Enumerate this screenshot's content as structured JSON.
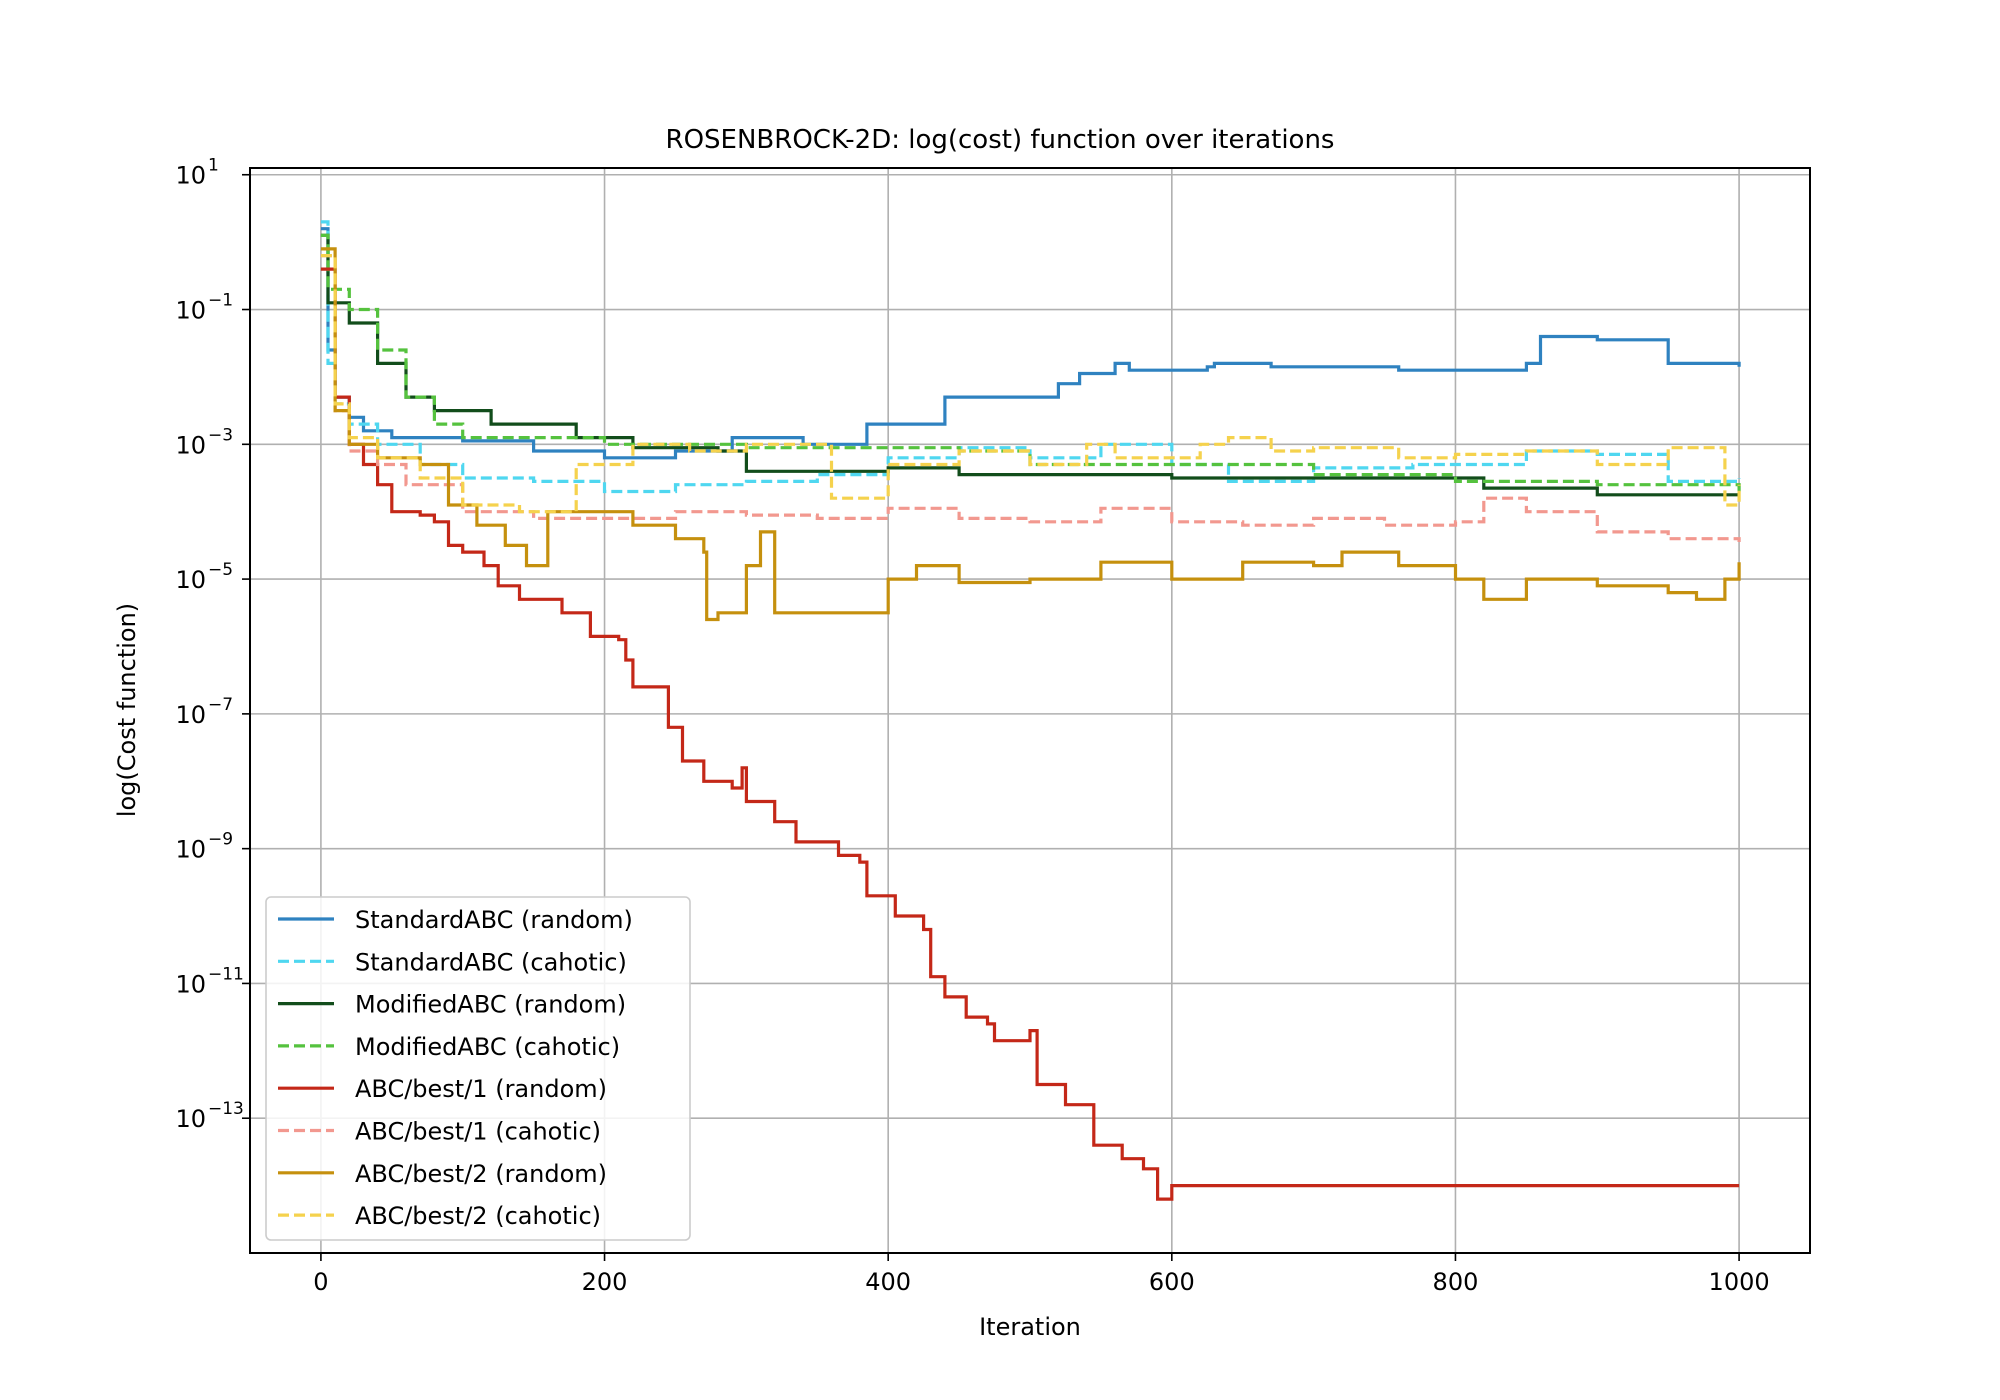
{
  "chart_data": {
    "type": "line",
    "title": "ROSENBROCK-2D: log(cost) function over iterations",
    "xlabel": "Iteration",
    "ylabel": "log(Cost function)",
    "xlim": [
      -50,
      1050
    ],
    "ylim_exponent": [
      -15.0,
      1.1
    ],
    "yscale": "log",
    "grid": true,
    "legend_position": "lower-left",
    "xticks": [
      0,
      200,
      400,
      600,
      800,
      1000
    ],
    "yticks": [
      {
        "base": "10",
        "exp": "1",
        "value": 1
      },
      {
        "base": "10",
        "exp": "−1",
        "value": -1
      },
      {
        "base": "10",
        "exp": "−3",
        "value": -3
      },
      {
        "base": "10",
        "exp": "−5",
        "value": -5
      },
      {
        "base": "10",
        "exp": "−7",
        "value": -7
      },
      {
        "base": "10",
        "exp": "−9",
        "value": -9
      },
      {
        "base": "10",
        "exp": "−11",
        "value": -11
      },
      {
        "base": "10",
        "exp": "−13",
        "value": -13
      }
    ],
    "series": [
      {
        "name": "StandardABC (random)",
        "color": "#2f82c0",
        "dash": "solid",
        "points": [
          [
            0,
            0.2
          ],
          [
            5,
            -1.6
          ],
          [
            10,
            -2.3
          ],
          [
            20,
            -2.6
          ],
          [
            30,
            -2.8
          ],
          [
            50,
            -2.9
          ],
          [
            100,
            -2.95
          ],
          [
            150,
            -3.1
          ],
          [
            200,
            -3.2
          ],
          [
            250,
            -3.1
          ],
          [
            290,
            -2.9
          ],
          [
            340,
            -3.0
          ],
          [
            385,
            -2.7
          ],
          [
            440,
            -2.3
          ],
          [
            520,
            -2.1
          ],
          [
            535,
            -1.95
          ],
          [
            560,
            -1.8
          ],
          [
            565,
            -1.8
          ],
          [
            570,
            -1.9
          ],
          [
            620,
            -1.9
          ],
          [
            625,
            -1.85
          ],
          [
            630,
            -1.8
          ],
          [
            670,
            -1.85
          ],
          [
            700,
            -1.85
          ],
          [
            760,
            -1.9
          ],
          [
            830,
            -1.9
          ],
          [
            850,
            -1.8
          ],
          [
            860,
            -1.4
          ],
          [
            900,
            -1.45
          ],
          [
            950,
            -1.8
          ],
          [
            1000,
            -1.85
          ]
        ]
      },
      {
        "name": "StandardABC (cahotic)",
        "color": "#4fd7f0",
        "dash": "dashed",
        "points": [
          [
            0,
            0.3
          ],
          [
            5,
            -1.8
          ],
          [
            10,
            -2.4
          ],
          [
            20,
            -2.7
          ],
          [
            40,
            -3.0
          ],
          [
            70,
            -3.3
          ],
          [
            100,
            -3.5
          ],
          [
            150,
            -3.55
          ],
          [
            200,
            -3.7
          ],
          [
            250,
            -3.6
          ],
          [
            300,
            -3.55
          ],
          [
            350,
            -3.45
          ],
          [
            400,
            -3.2
          ],
          [
            450,
            -3.05
          ],
          [
            500,
            -3.2
          ],
          [
            550,
            -3.0
          ],
          [
            600,
            -3.3
          ],
          [
            640,
            -3.55
          ],
          [
            700,
            -3.35
          ],
          [
            770,
            -3.3
          ],
          [
            850,
            -3.1
          ],
          [
            900,
            -3.15
          ],
          [
            950,
            -3.55
          ],
          [
            1000,
            -3.5
          ]
        ]
      },
      {
        "name": "ModifiedABC (random)",
        "color": "#124d1b",
        "dash": "solid",
        "points": [
          [
            0,
            0.1
          ],
          [
            5,
            -0.9
          ],
          [
            20,
            -1.2
          ],
          [
            40,
            -1.8
          ],
          [
            60,
            -2.3
          ],
          [
            80,
            -2.5
          ],
          [
            120,
            -2.7
          ],
          [
            180,
            -2.9
          ],
          [
            220,
            -3.05
          ],
          [
            280,
            -3.1
          ],
          [
            300,
            -3.4
          ],
          [
            400,
            -3.35
          ],
          [
            450,
            -3.45
          ],
          [
            600,
            -3.5
          ],
          [
            800,
            -3.5
          ],
          [
            820,
            -3.65
          ],
          [
            900,
            -3.75
          ],
          [
            1000,
            -3.75
          ]
        ]
      },
      {
        "name": "ModifiedABC (cahotic)",
        "color": "#55c23e",
        "dash": "dashed",
        "points": [
          [
            0,
            0.1
          ],
          [
            5,
            -0.7
          ],
          [
            20,
            -1.0
          ],
          [
            40,
            -1.6
          ],
          [
            60,
            -2.3
          ],
          [
            80,
            -2.7
          ],
          [
            100,
            -2.9
          ],
          [
            200,
            -3.0
          ],
          [
            300,
            -3.05
          ],
          [
            450,
            -3.1
          ],
          [
            500,
            -3.3
          ],
          [
            700,
            -3.45
          ],
          [
            800,
            -3.55
          ],
          [
            900,
            -3.6
          ],
          [
            1000,
            -3.7
          ]
        ]
      },
      {
        "name": "ABC/best/1 (random)",
        "color": "#c42818",
        "dash": "solid",
        "points": [
          [
            0,
            -0.4
          ],
          [
            10,
            -2.3
          ],
          [
            20,
            -3.0
          ],
          [
            30,
            -3.3
          ],
          [
            40,
            -3.6
          ],
          [
            50,
            -4.0
          ],
          [
            70,
            -4.05
          ],
          [
            80,
            -4.15
          ],
          [
            90,
            -4.5
          ],
          [
            100,
            -4.6
          ],
          [
            115,
            -4.8
          ],
          [
            125,
            -5.1
          ],
          [
            140,
            -5.3
          ],
          [
            160,
            -5.3
          ],
          [
            170,
            -5.5
          ],
          [
            190,
            -5.85
          ],
          [
            210,
            -5.9
          ],
          [
            215,
            -6.2
          ],
          [
            220,
            -6.6
          ],
          [
            240,
            -6.6
          ],
          [
            245,
            -7.2
          ],
          [
            255,
            -7.7
          ],
          [
            270,
            -8.0
          ],
          [
            290,
            -8.1
          ],
          [
            297,
            -7.8
          ],
          [
            300,
            -8.3
          ],
          [
            310,
            -8.3
          ],
          [
            320,
            -8.6
          ],
          [
            335,
            -8.9
          ],
          [
            360,
            -8.9
          ],
          [
            365,
            -9.1
          ],
          [
            380,
            -9.2
          ],
          [
            385,
            -9.7
          ],
          [
            405,
            -10.0
          ],
          [
            425,
            -10.2
          ],
          [
            430,
            -10.9
          ],
          [
            440,
            -11.2
          ],
          [
            455,
            -11.5
          ],
          [
            470,
            -11.6
          ],
          [
            475,
            -11.85
          ],
          [
            500,
            -11.7
          ],
          [
            505,
            -12.5
          ],
          [
            520,
            -12.5
          ],
          [
            525,
            -12.8
          ],
          [
            545,
            -13.4
          ],
          [
            565,
            -13.6
          ],
          [
            580,
            -13.75
          ],
          [
            590,
            -14.2
          ],
          [
            600,
            -14.0
          ],
          [
            1000,
            -14.0
          ]
        ]
      },
      {
        "name": "ABC/best/1 (cahotic)",
        "color": "#f2988f",
        "dash": "dashed",
        "points": [
          [
            0,
            -0.2
          ],
          [
            10,
            -2.5
          ],
          [
            20,
            -3.1
          ],
          [
            40,
            -3.3
          ],
          [
            60,
            -3.6
          ],
          [
            100,
            -4.0
          ],
          [
            150,
            -4.1
          ],
          [
            200,
            -4.1
          ],
          [
            250,
            -4.0
          ],
          [
            300,
            -4.05
          ],
          [
            350,
            -4.1
          ],
          [
            400,
            -3.95
          ],
          [
            450,
            -4.1
          ],
          [
            500,
            -4.15
          ],
          [
            550,
            -3.95
          ],
          [
            600,
            -4.15
          ],
          [
            650,
            -4.2
          ],
          [
            700,
            -4.1
          ],
          [
            750,
            -4.2
          ],
          [
            800,
            -4.15
          ],
          [
            820,
            -3.8
          ],
          [
            850,
            -4.0
          ],
          [
            900,
            -4.3
          ],
          [
            950,
            -4.4
          ],
          [
            1000,
            -4.45
          ]
        ]
      },
      {
        "name": "ABC/best/2 (random)",
        "color": "#c5900e",
        "dash": "solid",
        "points": [
          [
            0,
            -0.1
          ],
          [
            10,
            -2.5
          ],
          [
            20,
            -3.0
          ],
          [
            40,
            -3.2
          ],
          [
            70,
            -3.3
          ],
          [
            90,
            -3.9
          ],
          [
            110,
            -4.2
          ],
          [
            130,
            -4.5
          ],
          [
            145,
            -4.8
          ],
          [
            160,
            -4.0
          ],
          [
            190,
            -4.0
          ],
          [
            220,
            -4.2
          ],
          [
            250,
            -4.4
          ],
          [
            270,
            -4.6
          ],
          [
            272,
            -5.6
          ],
          [
            280,
            -5.5
          ],
          [
            290,
            -5.5
          ],
          [
            300,
            -4.8
          ],
          [
            310,
            -4.3
          ],
          [
            320,
            -5.5
          ],
          [
            400,
            -5.0
          ],
          [
            420,
            -4.8
          ],
          [
            450,
            -5.05
          ],
          [
            500,
            -5.0
          ],
          [
            550,
            -4.75
          ],
          [
            600,
            -5.0
          ],
          [
            650,
            -4.75
          ],
          [
            700,
            -4.8
          ],
          [
            720,
            -4.6
          ],
          [
            760,
            -4.8
          ],
          [
            800,
            -5.0
          ],
          [
            820,
            -5.3
          ],
          [
            850,
            -5.0
          ],
          [
            900,
            -5.1
          ],
          [
            950,
            -5.2
          ],
          [
            970,
            -5.3
          ],
          [
            990,
            -5.0
          ],
          [
            1000,
            -4.75
          ]
        ]
      },
      {
        "name": "ABC/best/2 (cahotic)",
        "color": "#f5d24d",
        "dash": "dashed",
        "points": [
          [
            0,
            -0.2
          ],
          [
            10,
            -2.4
          ],
          [
            20,
            -2.9
          ],
          [
            40,
            -3.2
          ],
          [
            70,
            -3.5
          ],
          [
            100,
            -3.9
          ],
          [
            140,
            -4.0
          ],
          [
            180,
            -3.3
          ],
          [
            220,
            -3.0
          ],
          [
            260,
            -3.1
          ],
          [
            300,
            -3.0
          ],
          [
            360,
            -3.8
          ],
          [
            400,
            -3.3
          ],
          [
            450,
            -3.1
          ],
          [
            500,
            -3.3
          ],
          [
            540,
            -3.0
          ],
          [
            560,
            -3.2
          ],
          [
            590,
            -3.2
          ],
          [
            620,
            -3.0
          ],
          [
            640,
            -2.9
          ],
          [
            670,
            -3.1
          ],
          [
            700,
            -3.05
          ],
          [
            760,
            -3.2
          ],
          [
            800,
            -3.15
          ],
          [
            850,
            -3.1
          ],
          [
            900,
            -3.3
          ],
          [
            950,
            -3.05
          ],
          [
            990,
            -3.9
          ],
          [
            1000,
            -3.6
          ]
        ]
      }
    ]
  }
}
